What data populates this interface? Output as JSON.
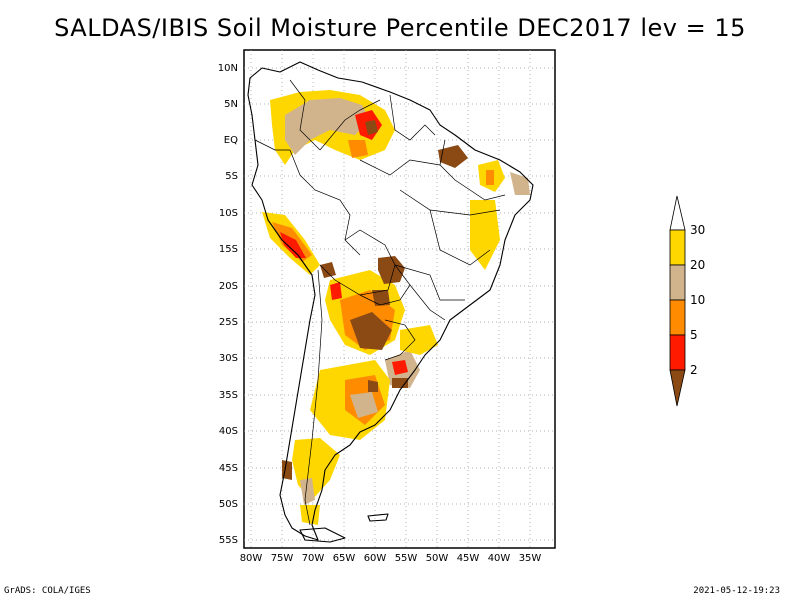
{
  "title": "SALDAS/IBIS Soil Moisture Percentile DEC2017 lev = 15",
  "map": {
    "region": "South America",
    "projection": "lat-lon",
    "lon_range": [
      -80,
      -30
    ],
    "lat_range": [
      -56,
      11
    ],
    "lat_labels": [
      "10N",
      "5N",
      "EQ",
      "5S",
      "10S",
      "15S",
      "20S",
      "25S",
      "30S",
      "35S",
      "40S",
      "45S",
      "50S",
      "55S"
    ],
    "lon_labels": [
      "80W",
      "75W",
      "70W",
      "65W",
      "60W",
      "55W",
      "50W",
      "45W",
      "40W",
      "35W"
    ],
    "grid": "dotted"
  },
  "legend": {
    "levels": [
      "2",
      "5",
      "10",
      "20",
      "30"
    ],
    "colors": {
      "below_2": "#8b4a14",
      "2_to_5": "#ff1a00",
      "5_to_10": "#ff8c00",
      "10_to_20": "#d2b48c",
      "20_to_30": "#ffd700",
      "above_30": "#ffffff"
    }
  },
  "footer": {
    "left": "GrADS: COLA/IGES",
    "right": "2021-05-12-19:23"
  }
}
